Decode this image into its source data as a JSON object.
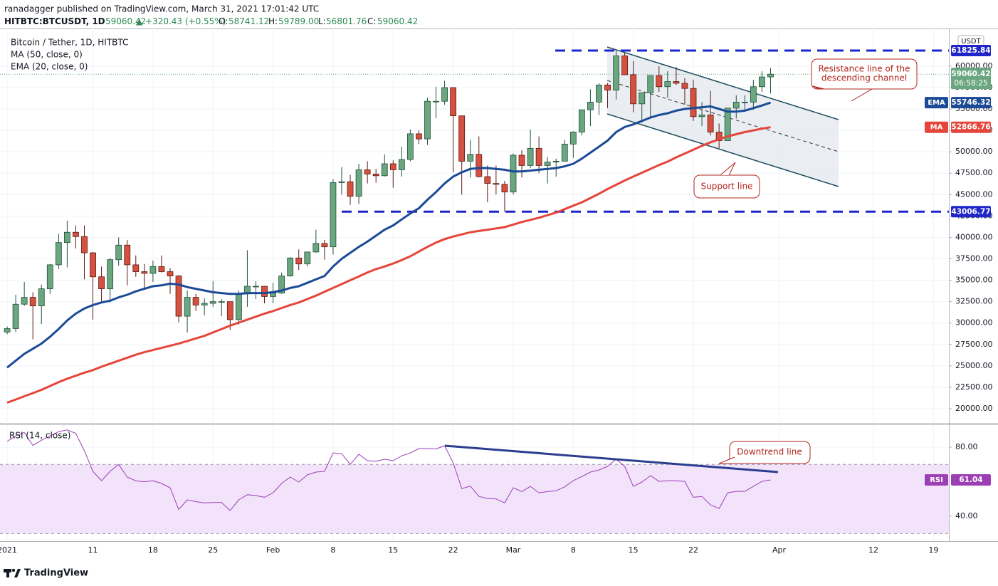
{
  "header": {
    "publisher": "ranadagger published on TradingView.com, March 31, 2021 17:01:42 UTC",
    "symbol": "HITBTC:BTCUSDT, 1D",
    "last": "59060.42",
    "arrow": "▲",
    "change": "+320.43 (+0.55%)",
    "ohlc": [
      {
        "label": "O:",
        "value": "58741.12"
      },
      {
        "label": "H:",
        "value": "59789.00"
      },
      {
        "label": "L:",
        "value": "56801.76"
      },
      {
        "label": "C:",
        "value": "59060.42"
      }
    ]
  },
  "chart_data": {
    "type": "candlestick",
    "title": "Bitcoin / Tether, 1D, HITBTC",
    "currency": "USDT",
    "countdown": "06:58:25",
    "up_color": "#6aa67f",
    "down_color": "#d5503f",
    "x": [
      "2021-01-01",
      "2021-01-02",
      "2021-01-03",
      "2021-01-04",
      "2021-01-05",
      "2021-01-06",
      "2021-01-07",
      "2021-01-08",
      "2021-01-09",
      "2021-01-10",
      "2021-01-11",
      "2021-01-12",
      "2021-01-13",
      "2021-01-14",
      "2021-01-15",
      "2021-01-16",
      "2021-01-17",
      "2021-01-18",
      "2021-01-19",
      "2021-01-20",
      "2021-01-21",
      "2021-01-22",
      "2021-01-23",
      "2021-01-24",
      "2021-01-25",
      "2021-01-26",
      "2021-01-27",
      "2021-01-28",
      "2021-01-29",
      "2021-01-30",
      "2021-01-31",
      "2021-02-01",
      "2021-02-02",
      "2021-02-03",
      "2021-02-04",
      "2021-02-05",
      "2021-02-06",
      "2021-02-07",
      "2021-02-08",
      "2021-02-09",
      "2021-02-10",
      "2021-02-11",
      "2021-02-12",
      "2021-02-13",
      "2021-02-14",
      "2021-02-15",
      "2021-02-16",
      "2021-02-17",
      "2021-02-18",
      "2021-02-19",
      "2021-02-20",
      "2021-02-21",
      "2021-02-22",
      "2021-02-23",
      "2021-02-24",
      "2021-02-25",
      "2021-02-26",
      "2021-02-27",
      "2021-02-28",
      "2021-03-01",
      "2021-03-02",
      "2021-03-03",
      "2021-03-04",
      "2021-03-05",
      "2021-03-06",
      "2021-03-07",
      "2021-03-08",
      "2021-03-09",
      "2021-03-10",
      "2021-03-11",
      "2021-03-12",
      "2021-03-13",
      "2021-03-14",
      "2021-03-15",
      "2021-03-16",
      "2021-03-17",
      "2021-03-18",
      "2021-03-19",
      "2021-03-20",
      "2021-03-21",
      "2021-03-22",
      "2021-03-23",
      "2021-03-24",
      "2021-03-25",
      "2021-03-26",
      "2021-03-27",
      "2021-03-28",
      "2021-03-29",
      "2021-03-30",
      "2021-03-31"
    ],
    "open": [
      28950,
      29350,
      32200,
      33000,
      32000,
      34000,
      36800,
      39400,
      40600,
      40100,
      38200,
      35400,
      34000,
      37400,
      39100,
      36800,
      36000,
      35800,
      36600,
      36000,
      35500,
      30800,
      33000,
      32100,
      32300,
      32500,
      32500,
      30400,
      33400,
      34300,
      34300,
      33100,
      33500,
      35500,
      37600,
      36900,
      38300,
      39300,
      38900,
      46400,
      46500,
      44800,
      47900,
      47400,
      47200,
      48600,
      47900,
      49100,
      52100,
      51500,
      55900,
      55900,
      57500,
      54200,
      48900,
      49700,
      47100,
      46300,
      46200,
      45300,
      49600,
      48400,
      50400,
      48400,
      48800,
      48900,
      50900,
      52300,
      54900,
      55800,
      57800,
      57200,
      61200,
      59000,
      55600,
      56900,
      58900,
      57600,
      58200,
      58000,
      57400,
      54100,
      54300,
      52300,
      51300,
      55100,
      55800,
      55800,
      57600,
      58741.12
    ],
    "high": [
      29600,
      33300,
      34800,
      33600,
      34500,
      36900,
      40400,
      41950,
      41400,
      41400,
      38300,
      36600,
      37600,
      40000,
      39700,
      37900,
      36900,
      37300,
      37900,
      36400,
      35600,
      33800,
      33400,
      32900,
      34900,
      32800,
      32500,
      33800,
      38500,
      34900,
      34300,
      34700,
      35900,
      37700,
      38600,
      38300,
      40900,
      39700,
      46800,
      48200,
      47300,
      48600,
      48900,
      48000,
      49700,
      49000,
      50600,
      52600,
      52500,
      56300,
      57600,
      58300,
      57500,
      54200,
      51400,
      51800,
      48400,
      48400,
      46600,
      49800,
      50200,
      52600,
      51800,
      49400,
      49200,
      51400,
      52400,
      54900,
      57300,
      58000,
      58000,
      61800,
      61600,
      60600,
      56900,
      58900,
      60000,
      59400,
      59900,
      58600,
      58400,
      55800,
      57100,
      53300,
      55100,
      56600,
      56600,
      58400,
      59400,
      59789
    ],
    "low": [
      28700,
      28950,
      32000,
      28100,
      29900,
      33400,
      36300,
      36500,
      38700,
      35100,
      30400,
      32500,
      32400,
      36700,
      34400,
      35400,
      33900,
      34800,
      35900,
      33400,
      30100,
      28900,
      31400,
      30900,
      31900,
      30800,
      29200,
      29800,
      31900,
      32800,
      32300,
      32300,
      33400,
      35400,
      36200,
      36600,
      38200,
      37400,
      38000,
      45000,
      43800,
      43900,
      46300,
      46400,
      47100,
      45800,
      47100,
      48900,
      50900,
      50800,
      53900,
      55500,
      47600,
      45000,
      47000,
      47000,
      44100,
      45000,
      43000,
      45000,
      47000,
      48100,
      47500,
      46300,
      47100,
      48900,
      49300,
      51900,
      53000,
      54300,
      55100,
      56100,
      59000,
      54600,
      53400,
      54100,
      57000,
      56300,
      57800,
      55500,
      53600,
      53000,
      51900,
      50400,
      51300,
      53900,
      54700,
      54900,
      57000,
      56801.76
    ],
    "close": [
      29350,
      32200,
      33000,
      32000,
      34000,
      36800,
      39400,
      40600,
      40100,
      38200,
      35400,
      34000,
      37400,
      39100,
      36800,
      36000,
      35800,
      36600,
      36000,
      35500,
      30800,
      33000,
      32100,
      32300,
      32500,
      32500,
      30400,
      33400,
      34300,
      34300,
      33100,
      33500,
      35500,
      37600,
      36900,
      38300,
      39300,
      38900,
      46400,
      46500,
      44800,
      47900,
      47400,
      47200,
      48600,
      47900,
      49100,
      52100,
      51500,
      55900,
      55900,
      57500,
      54200,
      48900,
      49700,
      47100,
      46300,
      46200,
      45300,
      49600,
      48400,
      50400,
      48400,
      48800,
      48900,
      50900,
      52300,
      54900,
      55800,
      57800,
      57200,
      61200,
      59000,
      55600,
      56900,
      58900,
      57600,
      58200,
      58000,
      57400,
      54100,
      54300,
      52300,
      51300,
      55100,
      55800,
      55800,
      57600,
      58741.12,
      59060.42
    ],
    "series": [
      {
        "name": "MA (50, close, 0)",
        "tag": "MA",
        "color": "#e5453a",
        "values": [
          20700,
          21070,
          21450,
          21820,
          22200,
          22650,
          23100,
          23500,
          23850,
          24200,
          24500,
          24900,
          25250,
          25600,
          25950,
          26300,
          26600,
          26850,
          27100,
          27350,
          27600,
          27900,
          28200,
          28500,
          28900,
          29300,
          29700,
          30050,
          30400,
          30750,
          31100,
          31400,
          31750,
          32100,
          32400,
          32800,
          33200,
          33650,
          34100,
          34550,
          35000,
          35450,
          35900,
          36300,
          36600,
          36950,
          37350,
          37800,
          38350,
          38900,
          39400,
          39800,
          40100,
          40350,
          40600,
          40750,
          40900,
          41050,
          41200,
          41500,
          41800,
          42050,
          42300,
          42600,
          42900,
          43300,
          43700,
          44100,
          44600,
          45100,
          45650,
          46150,
          46650,
          47100,
          47550,
          48000,
          48450,
          48850,
          49350,
          49800,
          50250,
          50700,
          51100,
          51450,
          51800,
          52050,
          52300,
          52500,
          52700,
          52866.76
        ]
      },
      {
        "name": "EMA (20, close, 0)",
        "tag": "EMA",
        "color": "#1b4a96",
        "values": [
          24800,
          25600,
          26400,
          27000,
          27600,
          28400,
          29300,
          30300,
          31100,
          31700,
          32100,
          32400,
          32600,
          33000,
          33300,
          33700,
          34000,
          34300,
          34400,
          34600,
          34500,
          34200,
          34000,
          33800,
          33600,
          33500,
          33400,
          33400,
          33500,
          33500,
          33500,
          33600,
          33800,
          34100,
          34300,
          34700,
          35100,
          35500,
          36600,
          37500,
          38200,
          38900,
          39500,
          40200,
          40900,
          41400,
          42100,
          42800,
          43400,
          44400,
          45300,
          46300,
          47100,
          47600,
          48000,
          48100,
          48100,
          48000,
          47900,
          47700,
          47700,
          47800,
          47900,
          48000,
          48100,
          48300,
          48600,
          49200,
          49900,
          50600,
          51300,
          52300,
          52900,
          53200,
          53600,
          54000,
          54300,
          54500,
          54800,
          55000,
          55100,
          55200,
          55300,
          55000,
          54700,
          54700,
          54800,
          55100,
          55400,
          55746.32
        ]
      }
    ],
    "levels": [
      61825.84,
      43006.77
    ],
    "level_color": "#1e25c9",
    "xlim": [
      "2020-12-31",
      "2021-04-21"
    ],
    "xticks": [
      {
        "value": "2021-01-01",
        "label": "2021"
      },
      {
        "value": "2021-01-11",
        "label": "11"
      },
      {
        "value": "2021-01-18",
        "label": "18"
      },
      {
        "value": "2021-01-25",
        "label": "25"
      },
      {
        "value": "2021-02-01",
        "label": "Feb"
      },
      {
        "value": "2021-02-08",
        "label": "8"
      },
      {
        "value": "2021-02-15",
        "label": "15"
      },
      {
        "value": "2021-02-22",
        "label": "22"
      },
      {
        "value": "2021-03-01",
        "label": "Mar"
      },
      {
        "value": "2021-03-08",
        "label": "8"
      },
      {
        "value": "2021-03-15",
        "label": "15"
      },
      {
        "value": "2021-03-22",
        "label": "22"
      },
      {
        "value": "2021-04-01",
        "label": "Apr"
      },
      {
        "value": "2021-04-12",
        "label": "12"
      },
      {
        "value": "2021-04-19",
        "label": "19"
      }
    ],
    "ylim": [
      18250,
      64400
    ],
    "yticks": [
      {
        "value": 20000,
        "label": "20000.00"
      },
      {
        "value": 22500,
        "label": "22500.00"
      },
      {
        "value": 25000,
        "label": "25000.00"
      },
      {
        "value": 27500,
        "label": "27500.00"
      },
      {
        "value": 30000,
        "label": "30000.00"
      },
      {
        "value": 32500,
        "label": "32500.00"
      },
      {
        "value": 35000,
        "label": "35000.00"
      },
      {
        "value": 37500,
        "label": "37500.00"
      },
      {
        "value": 40000,
        "label": "40000.00"
      },
      {
        "value": 42500,
        "label": "42500.00"
      },
      {
        "value": 45000,
        "label": "45000.00"
      },
      {
        "value": 47500,
        "label": "47500.00"
      },
      {
        "value": 50000,
        "label": "50000.00"
      },
      {
        "value": 52500,
        "label": "52500.00"
      },
      {
        "value": 55000,
        "label": "55000.00"
      },
      {
        "value": 57500,
        "label": "57500.00"
      },
      {
        "value": 60000,
        "label": "60000.00"
      }
    ],
    "annotations": [
      {
        "lines": [
          "Resistance line of the",
          "descending channel"
        ]
      },
      {
        "lines": [
          "Support line"
        ]
      },
      {
        "lines": [
          "Downtrend line"
        ]
      }
    ],
    "rsi": {
      "name": "RSI (14, close)",
      "tag": "RSI",
      "color": "#9c3fb5",
      "band_color": "#f2e3fb",
      "band": [
        30,
        70
      ],
      "ylim": [
        25.6,
        92.8
      ],
      "yticks": [
        {
          "value": 40,
          "label": "40.00"
        },
        {
          "value": 80,
          "label": "80.00"
        }
      ],
      "values": [
        83.3,
        86.6,
        88.5,
        81,
        84,
        86.5,
        89,
        90,
        88,
        78,
        66,
        60.6,
        66,
        70,
        62.7,
        60.5,
        60,
        60.6,
        59,
        56.5,
        44,
        49.5,
        48.5,
        47.8,
        48,
        48,
        43.3,
        49.5,
        52.5,
        52,
        51,
        53.6,
        59,
        62.7,
        59.8,
        64,
        65.6,
        66,
        76.7,
        76.3,
        70,
        75.9,
        72.2,
        71.8,
        73,
        72.2,
        75,
        76.7,
        79.2,
        79.2,
        79,
        80.8,
        71,
        56,
        57.5,
        51.5,
        50.3,
        50,
        47.8,
        56.5,
        54.3,
        57.3,
        53.6,
        54.3,
        54.8,
        57,
        60.6,
        63,
        65.6,
        66.8,
        68.9,
        73,
        68.9,
        57.3,
        59.8,
        63.5,
        60.2,
        60.6,
        60.6,
        60.2,
        51,
        51.5,
        46.6,
        44.5,
        53.6,
        54.4,
        54.4,
        57.3,
        60.2,
        61.04
      ]
    }
  },
  "footer": {
    "brand": "TradingView"
  }
}
